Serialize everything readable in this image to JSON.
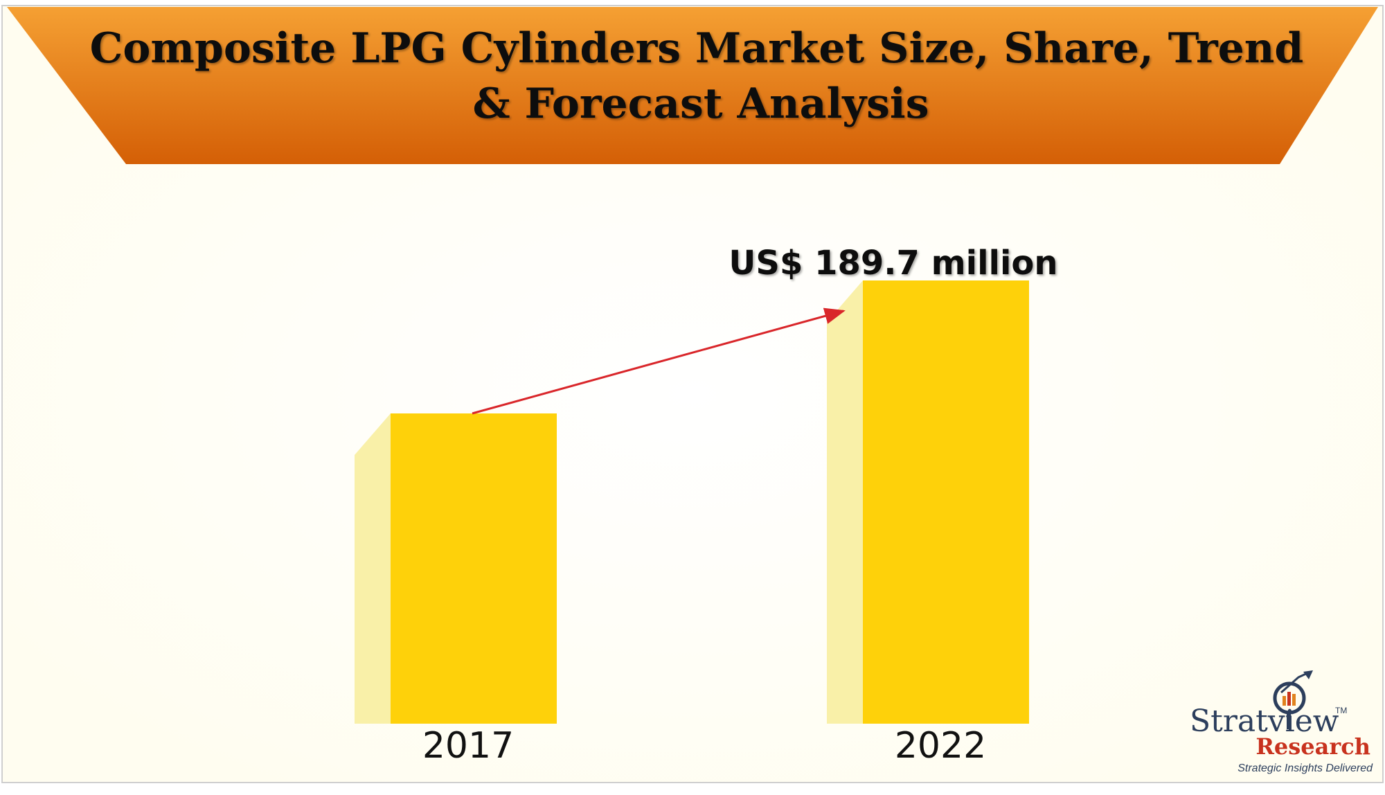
{
  "chart_data": {
    "type": "bar",
    "title_lines": [
      "Composite LPG Cylinders Market Size, Share, Trend",
      "& Forecast Analysis"
    ],
    "categories": [
      "2017",
      "2022"
    ],
    "values": [
      null,
      189.7
    ],
    "relative_heights": [
      0.7,
      1.0
    ],
    "data_labels": [
      "",
      "US$ 189.7 million"
    ],
    "unit": "US$ million",
    "growth_arrow": true,
    "grid": false,
    "legend": "none"
  },
  "colors": {
    "background": "#fffdf0",
    "banner_top": "#f5a033",
    "banner_bottom": "#d45f06",
    "bar_front": "#fed10a",
    "bar_side": "#f9f0a8",
    "arrow": "#d9262a",
    "brand_navy": "#2c3e5c",
    "brand_red": "#c8321e"
  },
  "branding": {
    "name": "Stratview",
    "tm": "TM",
    "sub": "Research",
    "tagline": "Strategic Insights Delivered",
    "icon": "magnifier-chart-icon"
  }
}
